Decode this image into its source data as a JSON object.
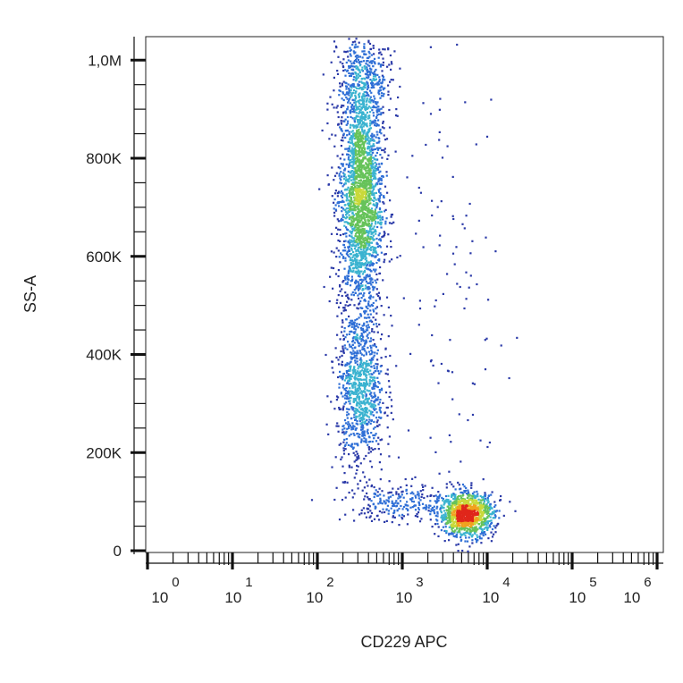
{
  "chart_data": {
    "type": "scatter",
    "style": "density-colored flow cytometry dot plot",
    "xlabel": "CD229 APC",
    "ylabel": "SS-A",
    "x_scale": "log",
    "xlim": [
      0.6,
      1500000
    ],
    "ylim": [
      0,
      1050000
    ],
    "x_ticks": [
      {
        "base": "10",
        "exp": "0"
      },
      {
        "base": "10",
        "exp": "1"
      },
      {
        "base": "10",
        "exp": "2"
      },
      {
        "base": "10",
        "exp": "3"
      },
      {
        "base": "10",
        "exp": "4"
      },
      {
        "base": "10",
        "exp": "5"
      },
      {
        "base": "10",
        "exp": "6"
      }
    ],
    "y_ticks": [
      {
        "value": 0,
        "label": "0"
      },
      {
        "value": 200000,
        "label": "200K"
      },
      {
        "value": 400000,
        "label": "400K"
      },
      {
        "value": 600000,
        "label": "600K"
      },
      {
        "value": 800000,
        "label": "800K"
      },
      {
        "value": 1000000,
        "label": "1,0M"
      }
    ],
    "grid": false,
    "density_colors": [
      "#2b3aa8",
      "#2f6fd6",
      "#3bb3d0",
      "#66c35a",
      "#c9d93a",
      "#f1a21f",
      "#e0261b"
    ],
    "populations": [
      {
        "log10_x_center": 2.5,
        "log10_x_sd": 0.13,
        "y_center": 720000,
        "y_sd": 120000,
        "weight": 0.45
      },
      {
        "log10_x_center": 2.5,
        "log10_x_sd": 0.14,
        "y_center": 330000,
        "y_sd": 80000,
        "weight": 0.18
      },
      {
        "log10_x_center": 2.55,
        "log10_x_sd": 0.16,
        "y_center": 960000,
        "y_sd": 50000,
        "weight": 0.08
      },
      {
        "log10_x_center": 3.75,
        "log10_x_sd": 0.16,
        "y_center": 75000,
        "y_sd": 22000,
        "weight": 0.22
      },
      {
        "log10_x_center": 3.0,
        "log10_x_sd": 0.35,
        "y_center": 100000,
        "y_sd": 20000,
        "weight": 0.05
      },
      {
        "log10_x_center": 3.6,
        "log10_x_sd": 0.3,
        "y_center": 500000,
        "y_sd": 250000,
        "weight": 0.02
      }
    ]
  }
}
